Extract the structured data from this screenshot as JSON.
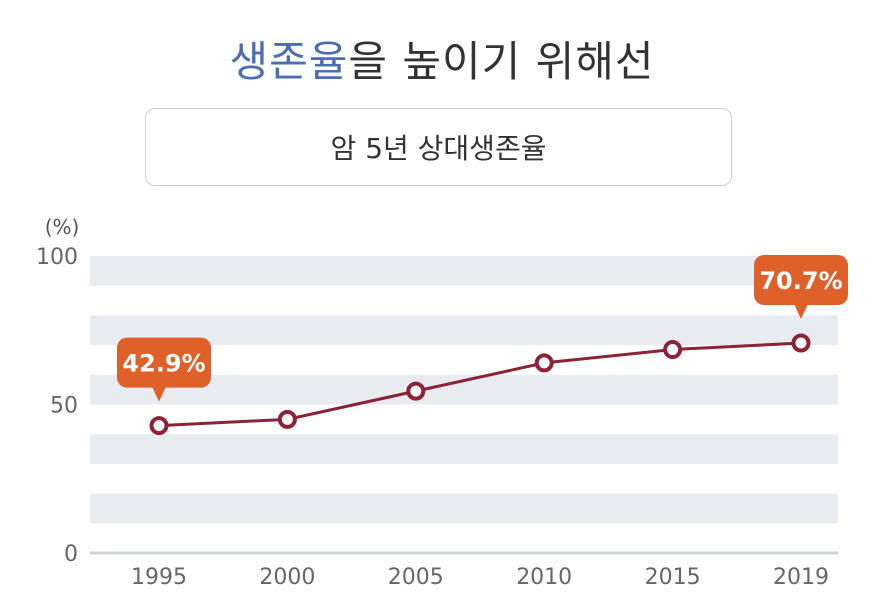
{
  "title": {
    "accent": "생존율",
    "rest": "을 높이기 위해선"
  },
  "subtitle": "암 5년 상대생존율",
  "colors": {
    "accent": "#4a6db3",
    "line": "#8b2335",
    "callout": "#e0602a",
    "band": "#e8ebef"
  },
  "chart_data": {
    "type": "line",
    "title": "암 5년 상대생존율",
    "ylabel": "(%)",
    "ylim": [
      0,
      100
    ],
    "yticks": [
      0,
      50,
      100
    ],
    "x": [
      "1995",
      "2000",
      "2005",
      "2010",
      "2015",
      "2019"
    ],
    "series": [
      {
        "values": [
          42.9,
          45.0,
          54.5,
          64.0,
          68.5,
          70.7
        ]
      }
    ],
    "annotations": [
      {
        "index": 0,
        "label": "42.9%"
      },
      {
        "index": 5,
        "label": "70.7%"
      }
    ],
    "grid": true
  }
}
